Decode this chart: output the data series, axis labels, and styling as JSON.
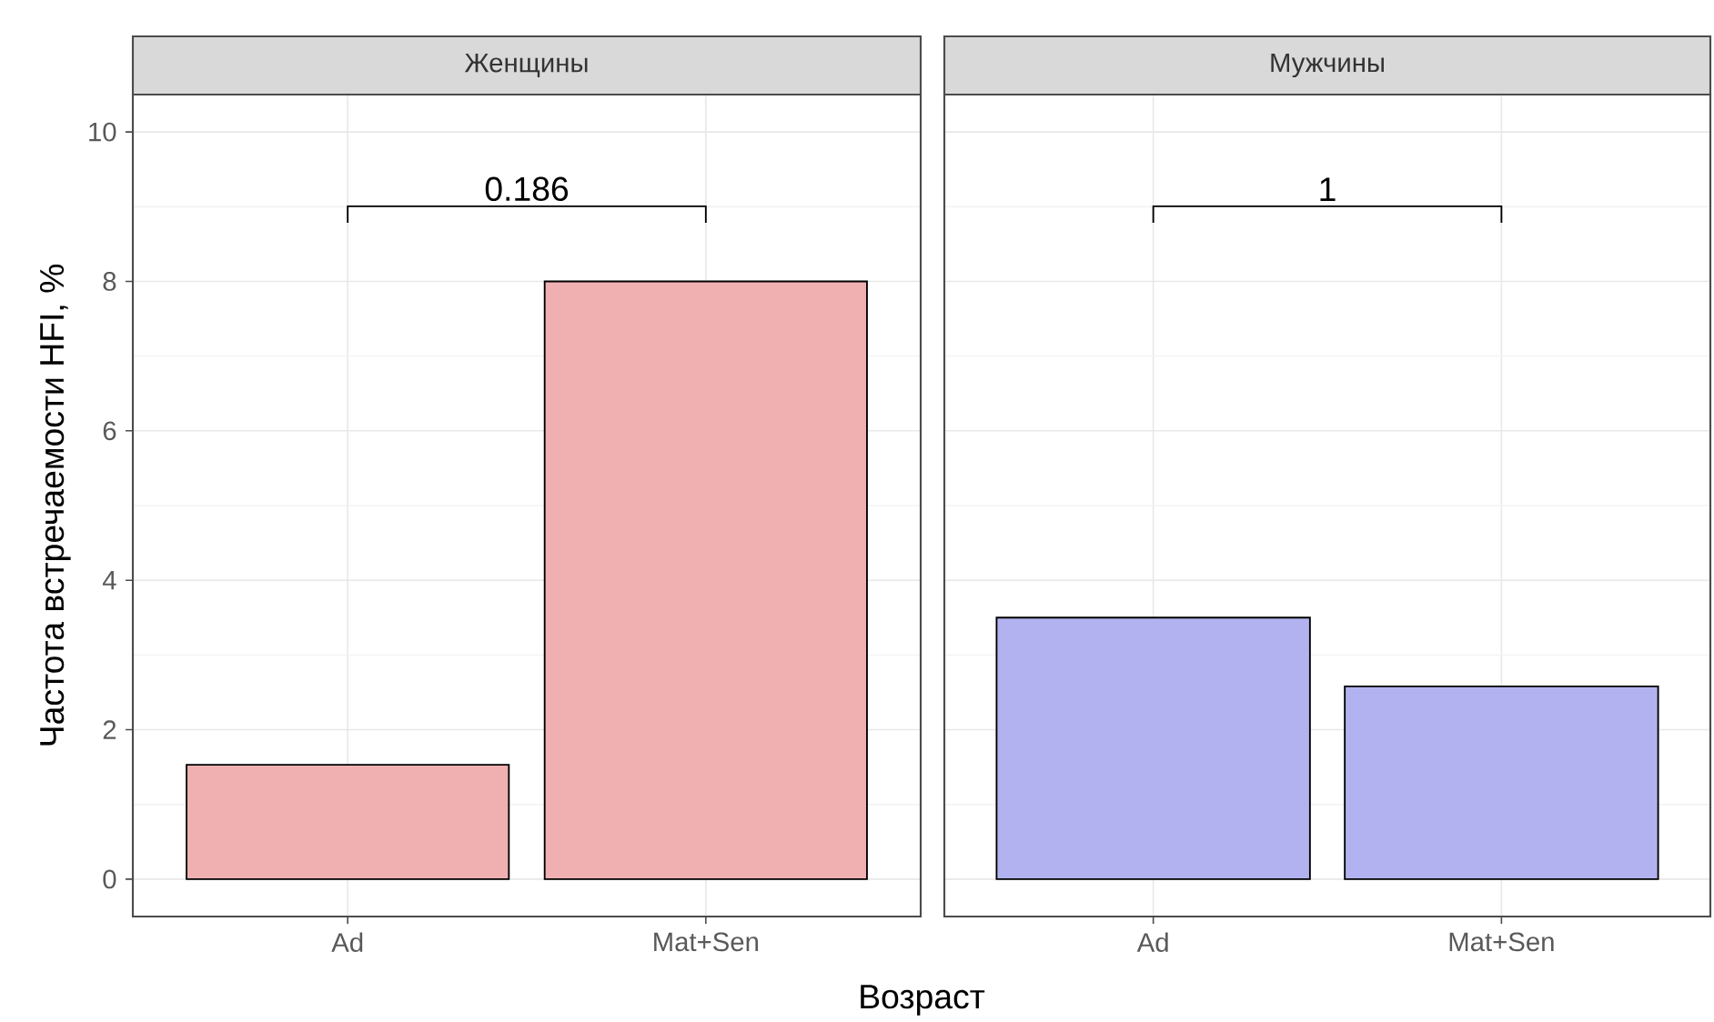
{
  "chart_data": [
    {
      "type": "bar",
      "title": "Женщины",
      "ylabel": "Частота встречаемости HFI, %",
      "xlabel": "Возраст",
      "categories": [
        "Ad",
        "Mat+Sen"
      ],
      "values": [
        1.53,
        8.0
      ],
      "color": "#f0b0b2",
      "ylim": [
        -0.5,
        10.5
      ],
      "yticks": [
        0,
        2,
        4,
        6,
        8,
        10
      ],
      "grid": true,
      "annotations": [
        "0.186"
      ]
    },
    {
      "type": "bar",
      "title": "Мужчины",
      "categories": [
        "Ad",
        "Mat+Sen"
      ],
      "values": [
        3.5,
        2.58
      ],
      "color": "#b2b2f0",
      "ylim": [
        -0.5,
        10.5
      ],
      "yticks": [
        0,
        2,
        4,
        6,
        8,
        10
      ],
      "grid": true,
      "tick_labels": "x",
      "annotations": [
        "1"
      ]
    }
  ]
}
